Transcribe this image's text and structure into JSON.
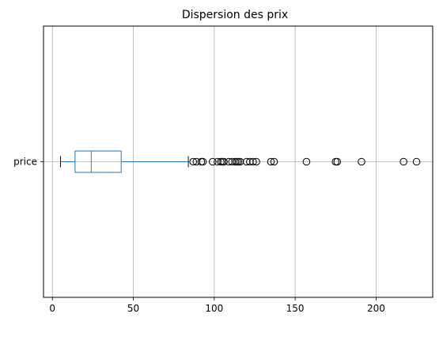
{
  "chart_data": {
    "type": "boxplot",
    "orientation": "horizontal",
    "title": "Dispersion des prix",
    "xlabel": "",
    "ylabel": "",
    "xlim": [
      -5.5,
      235
    ],
    "xticks": [
      0,
      50,
      100,
      150,
      200
    ],
    "grid": true,
    "category": "price",
    "box": {
      "whisker_low": 5,
      "q1": 14,
      "median": 24,
      "q3": 42.5,
      "whisker_high": 84
    },
    "outliers": [
      87,
      89,
      92,
      93,
      99,
      102,
      104,
      105,
      106,
      109,
      111,
      113,
      114,
      115,
      116,
      120,
      122,
      124,
      126,
      135,
      137,
      157,
      175,
      176,
      191,
      217,
      225
    ],
    "colors": {
      "box": "#1f77b4",
      "median": "#2ca02c",
      "whisker": "#000000",
      "outlier": "#000000",
      "grid": "#b0b0b0"
    }
  }
}
